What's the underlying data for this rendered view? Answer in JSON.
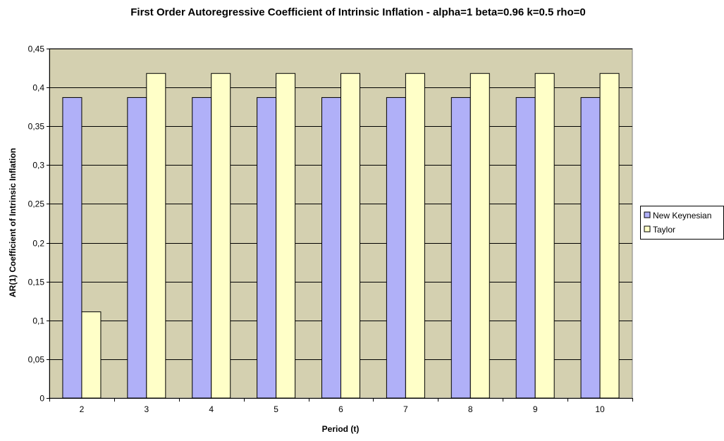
{
  "chart_data": {
    "type": "bar",
    "title": "First Order Autoregressive Coefficient of Intrinsic Inflation   -   alpha=1   beta=0.96   k=0.5   rho=0",
    "xlabel": "Period (t)",
    "ylabel": "AR(1) Coefficient of Intrinsic Inflation",
    "categories": [
      "2",
      "3",
      "4",
      "5",
      "6",
      "7",
      "8",
      "9",
      "10"
    ],
    "series": [
      {
        "name": "New Keynesian",
        "color": "#b0b0f8",
        "values": [
          0.387,
          0.387,
          0.387,
          0.387,
          0.387,
          0.387,
          0.387,
          0.387,
          0.387
        ]
      },
      {
        "name": "Taylor",
        "color": "#ffffc8",
        "values": [
          0.111,
          0.418,
          0.418,
          0.418,
          0.418,
          0.418,
          0.418,
          0.418,
          0.418
        ]
      }
    ],
    "ylim": [
      0,
      0.45
    ],
    "yticks": [
      0,
      0.05,
      0.1,
      0.15,
      0.2,
      0.25,
      0.3,
      0.35,
      0.4,
      0.45
    ],
    "ytick_labels": [
      "0",
      "0,05",
      "0,1",
      "0,15",
      "0,2",
      "0,25",
      "0,3",
      "0,35",
      "0,4",
      "0,45"
    ],
    "grid": true,
    "legend_position": "right",
    "plot_background": "#d4d0b0"
  }
}
